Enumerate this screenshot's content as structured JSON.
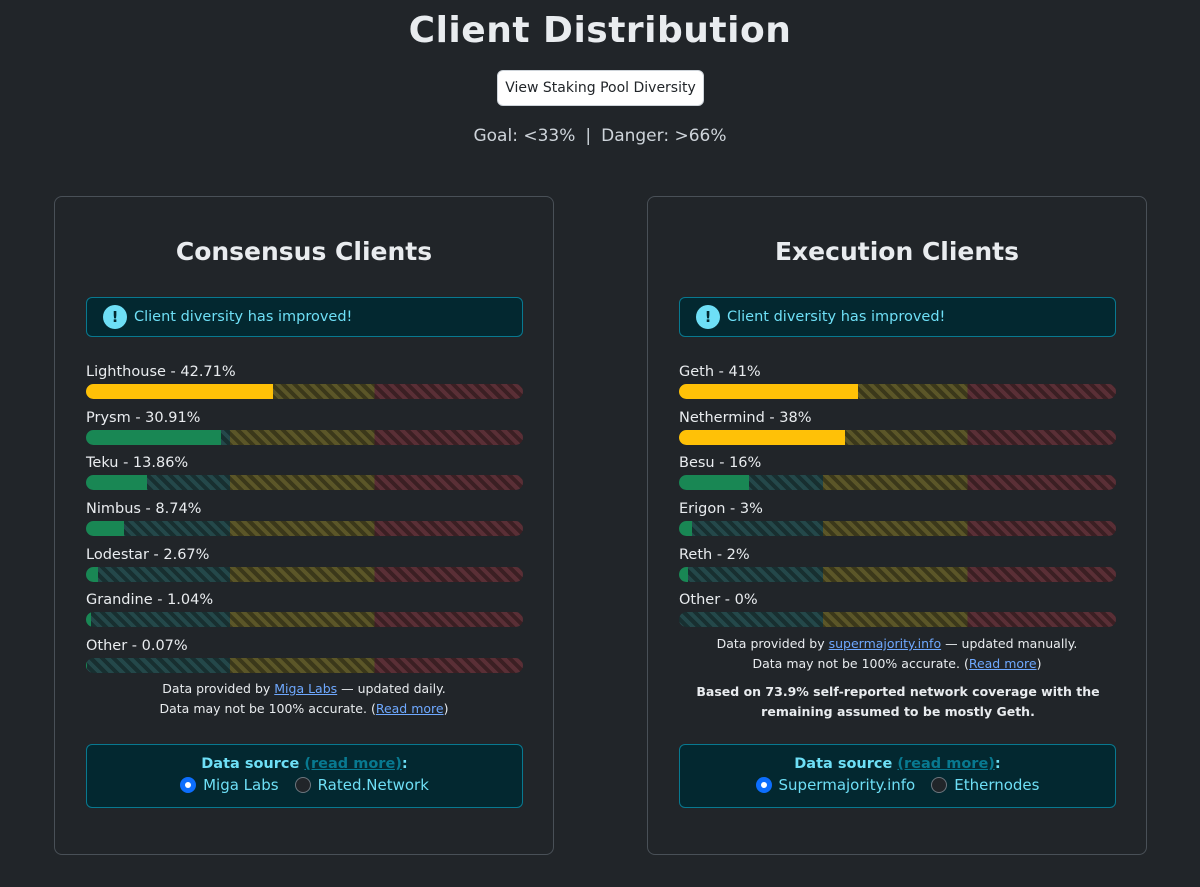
{
  "header": {
    "title": "Client Distribution",
    "pool_button": "View Staking Pool Diversity",
    "goal": "Goal: <33%",
    "separator": "|",
    "danger": "Danger: >66%"
  },
  "colors": {
    "background": "#212529",
    "good": "#198754",
    "warning": "#ffc107",
    "info": "#6edff6",
    "link": "#6ea8fe"
  },
  "consensus": {
    "title": "Consensus Clients",
    "alert": "Client diversity has improved!",
    "alert_icon": "exclamation-circle-icon",
    "clients": [
      {
        "label": "Lighthouse - 42.71%",
        "percent": 42.71,
        "status": "warning"
      },
      {
        "label": "Prysm - 30.91%",
        "percent": 30.91,
        "status": "good"
      },
      {
        "label": "Teku - 13.86%",
        "percent": 13.86,
        "status": "good"
      },
      {
        "label": "Nimbus - 8.74%",
        "percent": 8.74,
        "status": "good"
      },
      {
        "label": "Lodestar - 2.67%",
        "percent": 2.67,
        "status": "good"
      },
      {
        "label": "Grandine - 1.04%",
        "percent": 1.04,
        "status": "good"
      },
      {
        "label": "Other - 0.07%",
        "percent": 0.07,
        "status": "good"
      }
    ],
    "note_prefix": "Data provided by ",
    "note_link": "Miga Labs",
    "note_suffix": " — updated daily.",
    "accuracy_prefix": "Data may not be 100% accurate. (",
    "accuracy_link": "Read more",
    "accuracy_suffix": ")",
    "source_label": "Data source",
    "source_readmore": "(read more)",
    "source_colon": ":",
    "options": [
      {
        "label": "Miga Labs",
        "selected": true
      },
      {
        "label": "Rated.Network",
        "selected": false
      }
    ]
  },
  "execution": {
    "title": "Execution Clients",
    "alert": "Client diversity has improved!",
    "alert_icon": "exclamation-circle-icon",
    "clients": [
      {
        "label": "Geth - 41%",
        "percent": 41,
        "status": "warning"
      },
      {
        "label": "Nethermind - 38%",
        "percent": 38,
        "status": "warning"
      },
      {
        "label": "Besu - 16%",
        "percent": 16,
        "status": "good"
      },
      {
        "label": "Erigon - 3%",
        "percent": 3,
        "status": "good"
      },
      {
        "label": "Reth - 2%",
        "percent": 2,
        "status": "good"
      },
      {
        "label": "Other - 0%",
        "percent": 0,
        "status": "good"
      }
    ],
    "note_prefix": "Data provided by ",
    "note_link": "supermajority.info",
    "note_suffix": " — updated manually.",
    "accuracy_prefix": "Data may not be 100% accurate. (",
    "accuracy_link": "Read more",
    "accuracy_suffix": ")",
    "coverage_note": "Based on 73.9% self-reported network coverage with the remaining assumed to be mostly Geth.",
    "source_label": "Data source",
    "source_readmore": "(read more)",
    "source_colon": ":",
    "options": [
      {
        "label": "Supermajority.info",
        "selected": true
      },
      {
        "label": "Ethernodes",
        "selected": false
      }
    ]
  }
}
